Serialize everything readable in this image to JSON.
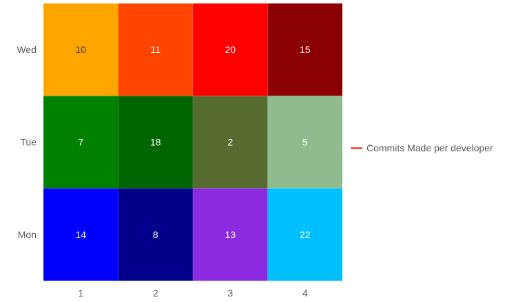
{
  "chart_data": {
    "type": "heatmap",
    "title": "",
    "xlabel": "",
    "ylabel": "",
    "x_categories": [
      "1",
      "2",
      "3",
      "4"
    ],
    "y_categories": [
      "Mon",
      "Tue",
      "Wed"
    ],
    "cells": [
      {
        "x": "1",
        "y": "Mon",
        "value": 14,
        "color": "#0000ff"
      },
      {
        "x": "2",
        "y": "Mon",
        "value": 8,
        "color": "#00008b"
      },
      {
        "x": "3",
        "y": "Mon",
        "value": 13,
        "color": "#8a2be2"
      },
      {
        "x": "4",
        "y": "Mon",
        "value": 22,
        "color": "#00bfff"
      },
      {
        "x": "1",
        "y": "Tue",
        "value": 7,
        "color": "#008000"
      },
      {
        "x": "2",
        "y": "Tue",
        "value": 18,
        "color": "#006400"
      },
      {
        "x": "3",
        "y": "Tue",
        "value": 2,
        "color": "#556b2f"
      },
      {
        "x": "4",
        "y": "Tue",
        "value": 5,
        "color": "#8fbc8f"
      },
      {
        "x": "1",
        "y": "Wed",
        "value": 10,
        "color": "#ffa500"
      },
      {
        "x": "2",
        "y": "Wed",
        "value": 11,
        "color": "#ff4500"
      },
      {
        "x": "3",
        "y": "Wed",
        "value": 20,
        "color": "#ff0000"
      },
      {
        "x": "4",
        "y": "Wed",
        "value": 15,
        "color": "#8b0000"
      }
    ],
    "legend": {
      "position": "right",
      "series_name": "Commits Made per developer",
      "color": "#e8584f"
    },
    "grid": false
  }
}
